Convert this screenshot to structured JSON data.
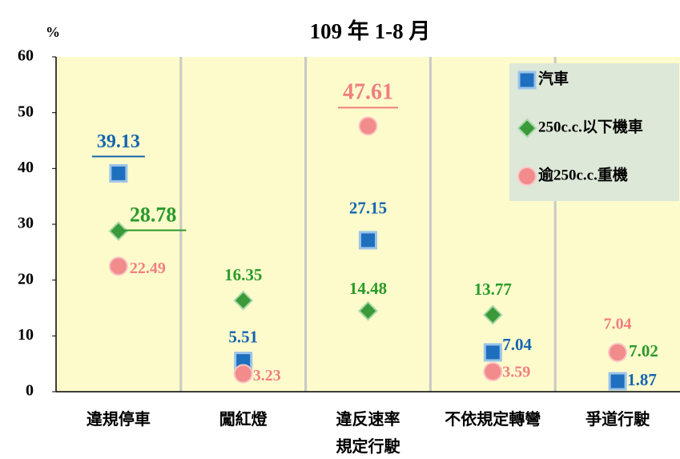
{
  "chart_data": {
    "type": "point",
    "subtitle": "109 年 1-8 月",
    "y_label": "%",
    "categories": [
      "違規停車",
      "闖紅燈",
      "違反速率\n規定行駛",
      "不依規定轉彎",
      "爭道行駛"
    ],
    "series": [
      {
        "name": "汽車",
        "color": "#1f6fbf",
        "label_color": "#1565b0",
        "marker": "square",
        "values": [
          39.13,
          5.51,
          27.15,
          7.04,
          1.87
        ]
      },
      {
        "name": "250c.c.以下機車",
        "color": "#3a9a3a",
        "label_color": "#2a9a2a",
        "marker": "diamond",
        "values": [
          28.78,
          16.35,
          14.48,
          13.77,
          7.02
        ]
      },
      {
        "name": "逾250c.c.重機",
        "color": "#f28b8b",
        "label_color": "#f08080",
        "marker": "circle",
        "values": [
          22.49,
          3.23,
          47.61,
          3.59,
          7.04
        ]
      }
    ],
    "ylim": [
      0,
      60
    ],
    "yticks": [
      0,
      10,
      20,
      30,
      40,
      50,
      60
    ],
    "legend": "upper right"
  }
}
